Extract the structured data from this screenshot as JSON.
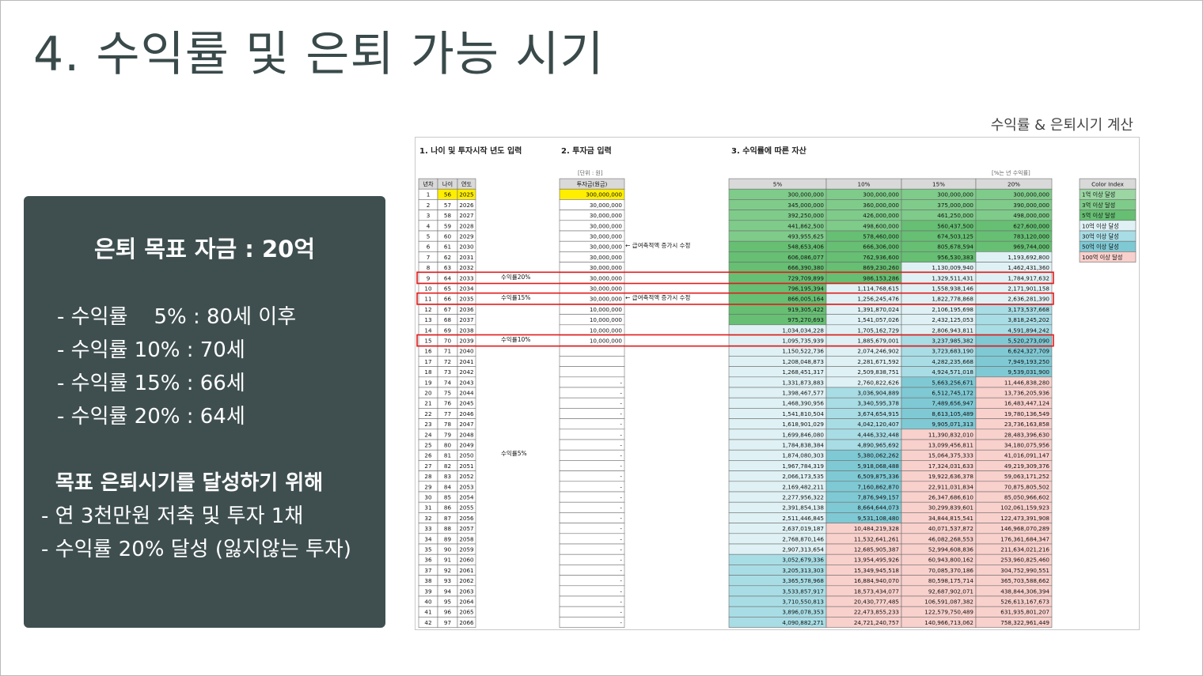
{
  "slide": {
    "title": "4. 수익률 및 은퇴 가능 시기",
    "calc_title": "수익률 & 은퇴시기 계산"
  },
  "panel": {
    "heading": "은퇴 목표 자금 : 20억",
    "returns": [
      "- 수익률    5% : 80세 이후",
      "- 수익률 10% : 70세",
      "- 수익률 15% : 66세",
      "- 수익률 20% : 64세"
    ],
    "goal_heading": "목표 은퇴시기를 달성하기 위해",
    "goal_items": [
      "- 연 3천만원 저축 및 투자 1채",
      "- 수익률 20% 달성 (잃지않는 투자)"
    ]
  },
  "sheet": {
    "sec1": "1. 나이 및 투자시작 년도 입력",
    "sec2": "2. 투자금 입력",
    "sec3": "3. 수익률에 따른 자산",
    "unit_left": "[단위 : 원]",
    "unit_right": "[%는 년 수익률]",
    "headers": {
      "year_no": "년차",
      "age": "나이",
      "year": "연도",
      "invest": "투자금(원금)",
      "r5": "5%",
      "r10": "10%",
      "r15": "15%",
      "r20": "20%"
    },
    "notes": {
      "increase": "← 급여축적액 증가시 수정",
      "r20": "수익률20%",
      "r15": "수익률15%",
      "r10": "수익률10%",
      "r5": "수익률5%"
    },
    "color_index": {
      "title": "Color Index",
      "items": [
        {
          "label": "1억 이상 달성",
          "color": "#9bd6a3"
        },
        {
          "label": "3억 이상 달성",
          "color": "#7fcb8a"
        },
        {
          "label": "5억 이상 달성",
          "color": "#66bf73"
        },
        {
          "label": "10억 이상 달성",
          "color": "#dff1f4"
        },
        {
          "label": "30억 이상 달성",
          "color": "#a9dde5"
        },
        {
          "label": "50억 이상 달성",
          "color": "#7fc9d4"
        },
        {
          "label": "100억 이상 달성",
          "color": "#f8d0cc"
        }
      ]
    },
    "rows": [
      [
        "1",
        "56",
        "2025",
        "300,000,000",
        "300,000,000",
        "300,000,000",
        "300,000,000",
        "300,000,000"
      ],
      [
        "2",
        "57",
        "2026",
        "30,000,000",
        "345,000,000",
        "360,000,000",
        "375,000,000",
        "390,000,000"
      ],
      [
        "3",
        "58",
        "2027",
        "30,000,000",
        "392,250,000",
        "426,000,000",
        "461,250,000",
        "498,000,000"
      ],
      [
        "4",
        "59",
        "2028",
        "30,000,000",
        "441,862,500",
        "498,600,000",
        "560,437,500",
        "627,600,000"
      ],
      [
        "5",
        "60",
        "2029",
        "30,000,000",
        "493,955,625",
        "578,460,000",
        "674,503,125",
        "783,120,000"
      ],
      [
        "6",
        "61",
        "2030",
        "30,000,000",
        "548,653,406",
        "666,306,000",
        "805,678,594",
        "969,744,000"
      ],
      [
        "7",
        "62",
        "2031",
        "30,000,000",
        "606,086,077",
        "762,936,600",
        "956,530,383",
        "1,193,692,800"
      ],
      [
        "8",
        "63",
        "2032",
        "30,000,000",
        "666,390,380",
        "869,230,260",
        "1,130,009,940",
        "1,462,431,360"
      ],
      [
        "9",
        "64",
        "2033",
        "30,000,000",
        "729,709,899",
        "986,153,286",
        "1,329,511,431",
        "1,784,917,632"
      ],
      [
        "10",
        "65",
        "2034",
        "30,000,000",
        "796,195,394",
        "1,114,768,615",
        "1,558,938,146",
        "2,171,901,158"
      ],
      [
        "11",
        "66",
        "2035",
        "30,000,000",
        "866,005,164",
        "1,256,245,476",
        "1,822,778,868",
        "2,636,281,390"
      ],
      [
        "12",
        "67",
        "2036",
        "10,000,000",
        "919,305,422",
        "1,391,870,024",
        "2,106,195,698",
        "3,173,537,668"
      ],
      [
        "13",
        "68",
        "2037",
        "10,000,000",
        "975,270,693",
        "1,541,057,026",
        "2,432,125,053",
        "3,818,245,202"
      ],
      [
        "14",
        "69",
        "2038",
        "10,000,000",
        "1,034,034,228",
        "1,705,162,729",
        "2,806,943,811",
        "4,591,894,242"
      ],
      [
        "15",
        "70",
        "2039",
        "10,000,000",
        "1,095,735,939",
        "1,885,679,001",
        "3,237,985,382",
        "5,520,273,090"
      ],
      [
        "16",
        "71",
        "2040",
        "",
        "1,150,522,736",
        "2,074,246,902",
        "3,723,683,190",
        "6,624,327,709"
      ],
      [
        "17",
        "72",
        "2041",
        "",
        "1,208,048,873",
        "2,281,671,592",
        "4,282,235,668",
        "7,949,193,250"
      ],
      [
        "18",
        "73",
        "2042",
        "",
        "1,268,451,317",
        "2,509,838,751",
        "4,924,571,018",
        "9,539,031,900"
      ],
      [
        "19",
        "74",
        "2043",
        "-",
        "1,331,873,883",
        "2,760,822,626",
        "5,663,256,671",
        "11,446,838,280"
      ],
      [
        "20",
        "75",
        "2044",
        "-",
        "1,398,467,577",
        "3,036,904,889",
        "6,512,745,172",
        "13,736,205,936"
      ],
      [
        "21",
        "76",
        "2045",
        "-",
        "1,468,390,956",
        "3,340,595,378",
        "7,489,656,947",
        "16,483,447,124"
      ],
      [
        "22",
        "77",
        "2046",
        "-",
        "1,541,810,504",
        "3,674,654,915",
        "8,613,105,489",
        "19,780,136,549"
      ],
      [
        "23",
        "78",
        "2047",
        "-",
        "1,618,901,029",
        "4,042,120,407",
        "9,905,071,313",
        "23,736,163,858"
      ],
      [
        "24",
        "79",
        "2048",
        "-",
        "1,699,846,080",
        "4,446,332,448",
        "11,390,832,010",
        "28,483,396,630"
      ],
      [
        "25",
        "80",
        "2049",
        "-",
        "1,784,838,384",
        "4,890,965,692",
        "13,099,456,811",
        "34,180,075,956"
      ],
      [
        "26",
        "81",
        "2050",
        "-",
        "1,874,080,303",
        "5,380,062,262",
        "15,064,375,333",
        "41,016,091,147"
      ],
      [
        "27",
        "82",
        "2051",
        "-",
        "1,967,784,319",
        "5,918,068,488",
        "17,324,031,633",
        "49,219,309,376"
      ],
      [
        "28",
        "83",
        "2052",
        "-",
        "2,066,173,535",
        "6,509,875,336",
        "19,922,636,378",
        "59,063,171,252"
      ],
      [
        "29",
        "84",
        "2053",
        "-",
        "2,169,482,211",
        "7,160,862,870",
        "22,911,031,834",
        "70,875,805,502"
      ],
      [
        "30",
        "85",
        "2054",
        "-",
        "2,277,956,322",
        "7,876,949,157",
        "26,347,686,610",
        "85,050,966,602"
      ],
      [
        "31",
        "86",
        "2055",
        "-",
        "2,391,854,138",
        "8,664,644,073",
        "30,299,839,601",
        "102,061,159,923"
      ],
      [
        "32",
        "87",
        "2056",
        "-",
        "2,511,446,845",
        "9,531,108,480",
        "34,844,815,541",
        "122,473,391,908"
      ],
      [
        "33",
        "88",
        "2057",
        "-",
        "2,637,019,187",
        "10,484,219,328",
        "40,071,537,872",
        "146,968,070,289"
      ],
      [
        "34",
        "89",
        "2058",
        "-",
        "2,768,870,146",
        "11,532,641,261",
        "46,082,268,553",
        "176,361,684,347"
      ],
      [
        "35",
        "90",
        "2059",
        "-",
        "2,907,313,654",
        "12,685,905,387",
        "52,994,608,836",
        "211,634,021,216"
      ],
      [
        "36",
        "91",
        "2060",
        "-",
        "3,052,679,336",
        "13,954,495,926",
        "60,943,800,162",
        "253,960,825,460"
      ],
      [
        "37",
        "92",
        "2061",
        "-",
        "3,205,313,303",
        "15,349,945,518",
        "70,085,370,186",
        "304,752,990,551"
      ],
      [
        "38",
        "93",
        "2062",
        "-",
        "3,365,578,968",
        "16,884,940,070",
        "80,598,175,714",
        "365,703,588,662"
      ],
      [
        "39",
        "94",
        "2063",
        "-",
        "3,533,857,917",
        "18,573,434,077",
        "92,687,902,071",
        "438,844,306,394"
      ],
      [
        "40",
        "95",
        "2064",
        "-",
        "3,710,550,813",
        "20,430,777,485",
        "106,591,087,382",
        "526,613,167,673"
      ],
      [
        "41",
        "96",
        "2065",
        "-",
        "3,896,078,353",
        "22,473,855,233",
        "122,579,750,489",
        "631,935,801,207"
      ],
      [
        "42",
        "97",
        "2066",
        "-",
        "4,090,882,271",
        "24,721,240,757",
        "140,966,713,062",
        "758,322,961,449"
      ]
    ]
  }
}
